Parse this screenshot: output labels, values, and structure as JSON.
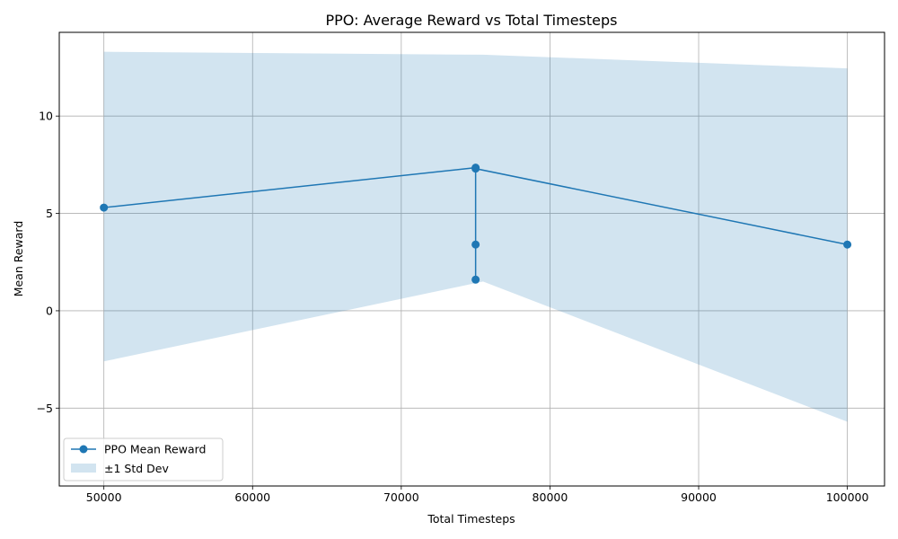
{
  "chart_data": {
    "type": "line",
    "title": "PPO: Average Reward vs Total Timesteps",
    "xlabel": "Total Timesteps",
    "ylabel": "Mean Reward",
    "xlim": [
      47000,
      102500
    ],
    "ylim": [
      -9,
      14.3
    ],
    "x_ticks": [
      50000,
      60000,
      70000,
      80000,
      90000,
      100000
    ],
    "x_tick_labels": [
      "50000",
      "60000",
      "70000",
      "80000",
      "90000",
      "100000"
    ],
    "y_ticks": [
      -5,
      0,
      5,
      10
    ],
    "y_tick_labels": [
      "−5",
      "0",
      "5",
      "10"
    ],
    "grid": true,
    "legend_position": "lower-left",
    "series": [
      {
        "name": "PPO Mean Reward",
        "color": "#1f77b4",
        "marker": "circle",
        "x": [
          50000,
          75000,
          75000,
          75000,
          75000,
          100000
        ],
        "y": [
          5.3,
          7.35,
          1.6,
          3.4,
          7.3,
          3.4
        ]
      }
    ],
    "band": {
      "name": "±1 Std Dev",
      "color": "#1f77b4",
      "opacity": 0.2,
      "x": [
        50000,
        75500,
        100000
      ],
      "upper": [
        13.3,
        13.15,
        12.45
      ],
      "lower": [
        -2.6,
        1.5,
        -5.7
      ]
    }
  }
}
